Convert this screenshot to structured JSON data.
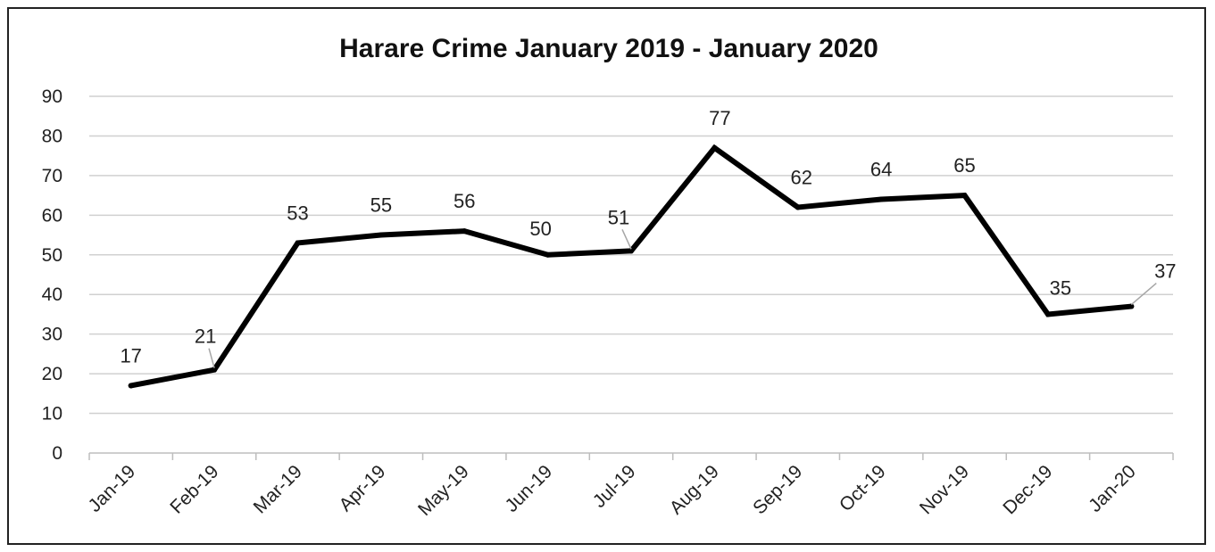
{
  "chart_data": {
    "type": "line",
    "title": "Harare Crime January 2019 - January 2020",
    "categories": [
      "Jan-19",
      "Feb-19",
      "Mar-19",
      "Apr-19",
      "May-19",
      "Jun-19",
      "Jul-19",
      "Aug-19",
      "Sep-19",
      "Oct-19",
      "Nov-19",
      "Dec-19",
      "Jan-20"
    ],
    "series": [
      {
        "values": [
          17,
          21,
          53,
          55,
          56,
          50,
          51,
          77,
          62,
          64,
          65,
          35,
          37
        ]
      }
    ],
    "ylim": [
      0,
      90
    ],
    "yticks": [
      0,
      10,
      20,
      30,
      40,
      50,
      60,
      70,
      80,
      90
    ],
    "grid": true,
    "legend": "none",
    "line_color": "#000000",
    "grid_color": "#d0d0d0"
  }
}
